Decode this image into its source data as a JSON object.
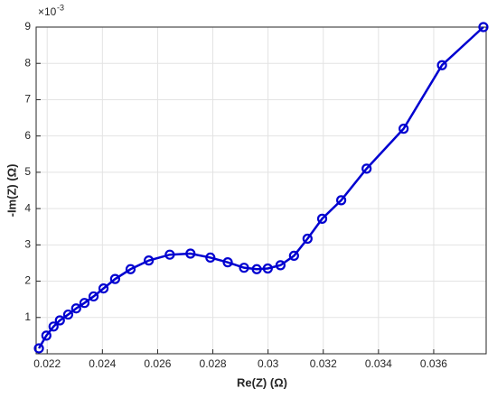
{
  "chart_data": {
    "type": "line",
    "xlabel": "Re(Z) (Ω)",
    "ylabel": "-Im(Z) (Ω)",
    "y_exponent_base": "×10",
    "y_exponent_power": "-3",
    "x": [
      0.0217,
      0.02197,
      0.02223,
      0.02246,
      0.02276,
      0.02305,
      0.02335,
      0.02368,
      0.02404,
      0.02446,
      0.02502,
      0.02568,
      0.02644,
      0.02719,
      0.02791,
      0.02854,
      0.02913,
      0.02959,
      0.02999,
      0.03045,
      0.03094,
      0.03143,
      0.03196,
      0.03265,
      0.03357,
      0.03491,
      0.0363,
      0.0378
    ],
    "series": [
      {
        "color": "#0000d0",
        "values": [
          0.15,
          0.5,
          0.75,
          0.92,
          1.08,
          1.25,
          1.4,
          1.58,
          1.8,
          2.06,
          2.33,
          2.57,
          2.73,
          2.76,
          2.65,
          2.52,
          2.37,
          2.33,
          2.35,
          2.44,
          2.7,
          3.17,
          3.72,
          4.23,
          5.1,
          6.2,
          7.95,
          9.0
        ]
      }
    ],
    "xlim": [
      0.0216,
      0.0379
    ],
    "ylim": [
      0,
      9
    ],
    "xticks": [
      0.022,
      0.024,
      0.026,
      0.028,
      0.03,
      0.032,
      0.034,
      0.036
    ],
    "yticks": [
      1,
      2,
      3,
      4,
      5,
      6,
      7,
      8,
      9
    ],
    "grid": true,
    "marker": "circle"
  }
}
